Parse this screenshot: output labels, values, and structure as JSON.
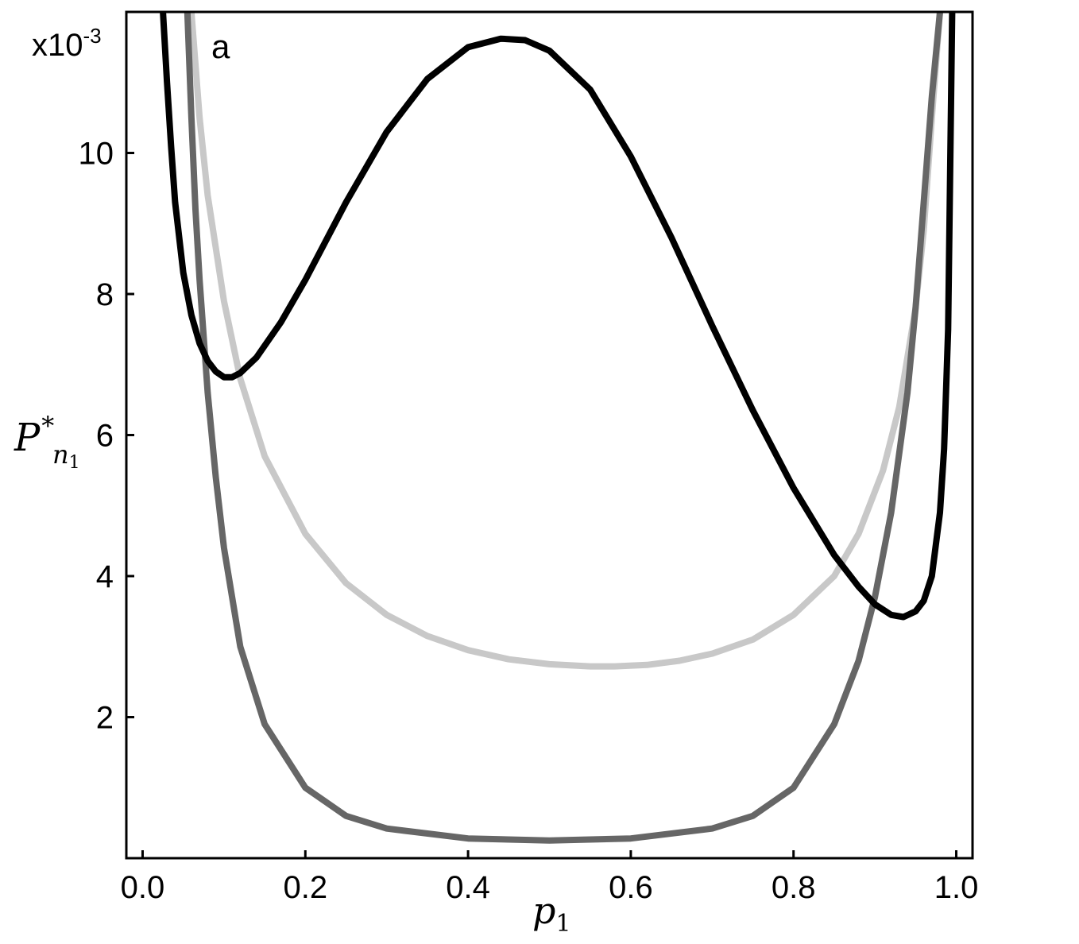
{
  "chart_data": {
    "type": "line",
    "panel_label": "a",
    "y_scale_label": {
      "base": "x10",
      "exponent": "-3"
    },
    "xlabel": {
      "base": "p",
      "sub": "1"
    },
    "ylabel": {
      "base": "P",
      "sup": "*",
      "sub": "n",
      "subsub": "1"
    },
    "xlim": [
      -0.02,
      1.02
    ],
    "ylim": [
      0,
      12
    ],
    "x_ticks": [
      0.0,
      0.2,
      0.4,
      0.6,
      0.8,
      1.0
    ],
    "x_tick_labels": [
      "0.0",
      "0.2",
      "0.4",
      "0.6",
      "0.8",
      "1.0"
    ],
    "y_ticks": [
      2,
      4,
      6,
      8,
      10
    ],
    "y_tick_labels": [
      "2",
      "4",
      "6",
      "8",
      "10"
    ],
    "grid": false,
    "series": [
      {
        "color": "#c8c8c8",
        "x": [
          0.06,
          0.07,
          0.08,
          0.1,
          0.12,
          0.15,
          0.2,
          0.25,
          0.3,
          0.35,
          0.4,
          0.45,
          0.5,
          0.55,
          0.58,
          0.62,
          0.66,
          0.7,
          0.75,
          0.8,
          0.85,
          0.88,
          0.91,
          0.93,
          0.95,
          0.96,
          0.97,
          0.98
        ],
        "values": [
          12.0,
          10.5,
          9.4,
          7.9,
          6.8,
          5.7,
          4.6,
          3.9,
          3.45,
          3.15,
          2.95,
          2.82,
          2.75,
          2.72,
          2.72,
          2.74,
          2.8,
          2.9,
          3.1,
          3.45,
          4.0,
          4.6,
          5.5,
          6.4,
          7.8,
          8.9,
          10.5,
          12.0
        ]
      },
      {
        "color": "#666666",
        "x": [
          0.055,
          0.06,
          0.065,
          0.07,
          0.08,
          0.09,
          0.1,
          0.12,
          0.15,
          0.2,
          0.25,
          0.3,
          0.4,
          0.5,
          0.6,
          0.7,
          0.75,
          0.8,
          0.85,
          0.88,
          0.9,
          0.92,
          0.94,
          0.95,
          0.96,
          0.97,
          0.98
        ],
        "values": [
          12.0,
          10.5,
          9.2,
          8.2,
          6.6,
          5.4,
          4.4,
          3.0,
          1.9,
          1.0,
          0.6,
          0.42,
          0.28,
          0.25,
          0.28,
          0.42,
          0.6,
          1.0,
          1.9,
          2.8,
          3.7,
          4.9,
          6.6,
          7.8,
          9.3,
          10.8,
          12.0
        ]
      },
      {
        "color": "#000000",
        "x": [
          0.025,
          0.03,
          0.035,
          0.04,
          0.05,
          0.06,
          0.07,
          0.08,
          0.09,
          0.1,
          0.11,
          0.12,
          0.14,
          0.17,
          0.2,
          0.25,
          0.3,
          0.35,
          0.4,
          0.44,
          0.47,
          0.5,
          0.55,
          0.6,
          0.65,
          0.7,
          0.75,
          0.8,
          0.85,
          0.88,
          0.9,
          0.92,
          0.935,
          0.95,
          0.96,
          0.97,
          0.98,
          0.985,
          0.99,
          0.995
        ],
        "values": [
          12.0,
          11.0,
          10.1,
          9.3,
          8.3,
          7.7,
          7.3,
          7.05,
          6.9,
          6.82,
          6.82,
          6.88,
          7.1,
          7.6,
          8.2,
          9.3,
          10.3,
          11.05,
          11.5,
          11.62,
          11.6,
          11.45,
          10.9,
          9.95,
          8.8,
          7.55,
          6.35,
          5.25,
          4.3,
          3.85,
          3.6,
          3.45,
          3.42,
          3.5,
          3.65,
          4.0,
          4.9,
          5.8,
          7.5,
          12.0
        ]
      }
    ]
  }
}
